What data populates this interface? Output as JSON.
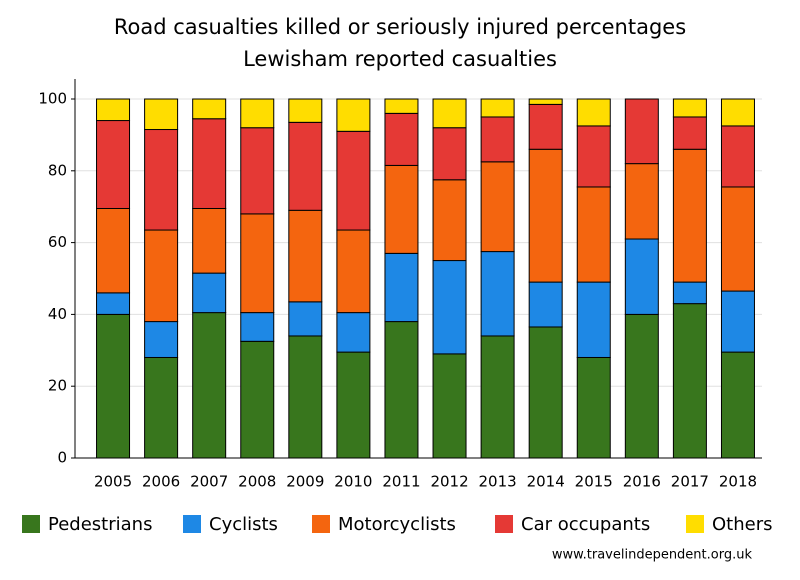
{
  "chart_data": {
    "type": "stacked_bar",
    "title": "Road casualties killed or seriously injured percentages",
    "subtitle": "Lewisham reported casualties",
    "source": "www.travelindependent.org.uk",
    "categories": [
      "2005",
      "2006",
      "2007",
      "2008",
      "2009",
      "2010",
      "2011",
      "2012",
      "2013",
      "2014",
      "2015",
      "2016",
      "2017",
      "2018"
    ],
    "series": [
      {
        "name": "Pedestrians",
        "color": "#38761d",
        "values": [
          40,
          28,
          40.5,
          32.5,
          34,
          29.5,
          38,
          29,
          34,
          36.5,
          28,
          40,
          43,
          29.5
        ]
      },
      {
        "name": "Cyclists",
        "color": "#1e88e5",
        "values": [
          6,
          10,
          11,
          8,
          9.5,
          11,
          19,
          26,
          23.5,
          12.5,
          21,
          21,
          6,
          17
        ]
      },
      {
        "name": "Motorcyclists",
        "color": "#f4650f",
        "values": [
          23.5,
          25.5,
          18,
          27.5,
          25.5,
          23,
          24.5,
          22.5,
          25,
          37,
          26.5,
          21,
          37,
          29
        ]
      },
      {
        "name": "Car occupants",
        "color": "#e53935",
        "values": [
          24.5,
          28,
          25,
          24,
          24.5,
          27.5,
          14.5,
          14.5,
          12.5,
          12.5,
          17,
          18,
          9,
          17
        ]
      },
      {
        "name": "Others",
        "color": "#ffdd00",
        "values": [
          6,
          8.5,
          5.5,
          8,
          6.5,
          9,
          4,
          8,
          5,
          1.5,
          7.5,
          0,
          5,
          7.5
        ]
      }
    ],
    "ylim": [
      0,
      100
    ],
    "yticks": [
      0,
      20,
      40,
      60,
      80,
      100
    ],
    "grid": true
  }
}
